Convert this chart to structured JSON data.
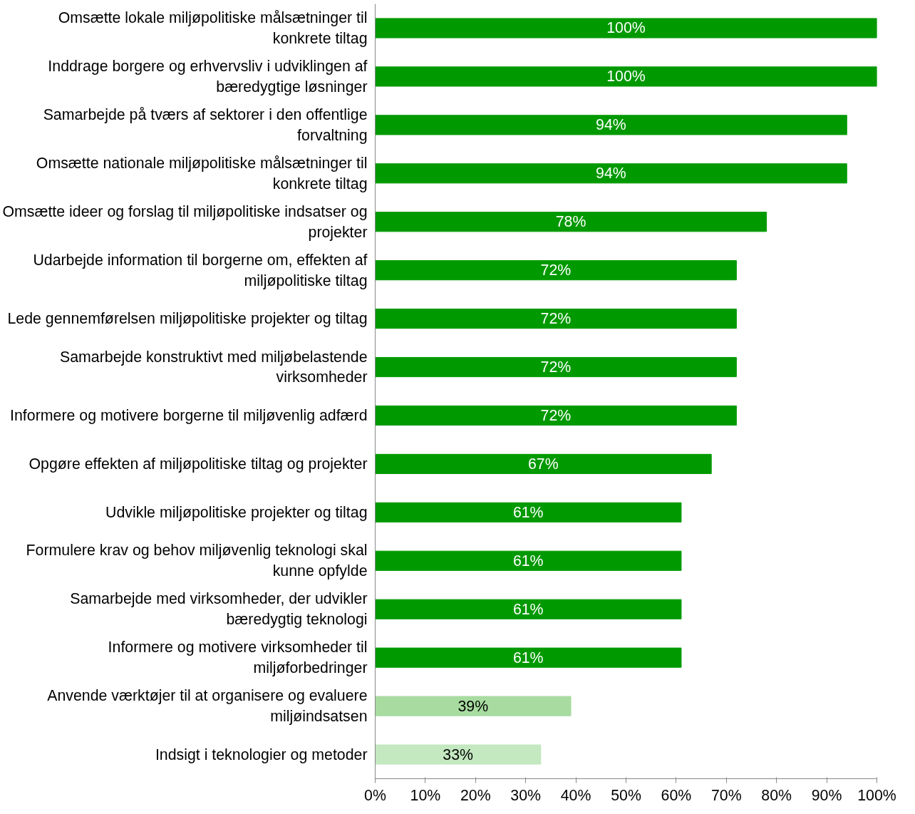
{
  "chart_data": {
    "type": "bar",
    "orientation": "horizontal",
    "categories": [
      "Omsætte lokale miljøpolitiske målsætninger til\nkonkrete tiltag",
      "Inddrage borgere og erhvervsliv i udviklingen af\nbæredygtige løsninger",
      "Samarbejde på tværs af sektorer i den offentlige\nforvaltning",
      "Omsætte nationale miljøpolitiske målsætninger til\nkonkrete tiltag",
      "Omsætte ideer og forslag til miljøpolitiske indsatser og\nprojekter",
      "Udarbejde information til borgerne om, effekten af\nmiljøpolitiske tiltag",
      "Lede gennemførelsen miljøpolitiske projekter og tiltag",
      "Samarbejde konstruktivt med miljøbelastende\nvirksomheder",
      "Informere og motivere borgerne til miljøvenlig adfærd",
      "Opgøre effekten af miljøpolitiske tiltag og projekter",
      "Udvikle miljøpolitiske projekter og tiltag",
      "Formulere krav og behov miljøvenlig teknologi skal\nkunne opfylde",
      "Samarbejde med virksomheder, der udvikler\nbæredygtig teknologi",
      "Informere og motivere virksomheder til\nmiljøforbedringer",
      "Anvende værktøjer til at organisere og evaluere\nmiljøindsatsen",
      "Indsigt i teknologier og metoder"
    ],
    "values": [
      100,
      100,
      94,
      94,
      78,
      72,
      72,
      72,
      72,
      67,
      61,
      61,
      61,
      61,
      39,
      33
    ],
    "value_labels": [
      "100%",
      "100%",
      "94%",
      "94%",
      "78%",
      "72%",
      "72%",
      "72%",
      "72%",
      "67%",
      "61%",
      "61%",
      "61%",
      "61%",
      "39%",
      "33%"
    ],
    "colors": [
      "#009900",
      "#009900",
      "#009900",
      "#009900",
      "#009900",
      "#009900",
      "#009900",
      "#009900",
      "#009900",
      "#009900",
      "#009900",
      "#009900",
      "#009900",
      "#009900",
      "#a8dba0",
      "#c4e8c0"
    ],
    "xlim": [
      0,
      100
    ],
    "xticks": [
      {
        "value": 0,
        "label": "0%"
      },
      {
        "value": 10,
        "label": "10%"
      },
      {
        "value": 20,
        "label": "20%"
      },
      {
        "value": 30,
        "label": "30%"
      },
      {
        "value": 40,
        "label": "40%"
      },
      {
        "value": 50,
        "label": "50%"
      },
      {
        "value": 60,
        "label": "60%"
      },
      {
        "value": 70,
        "label": "70%"
      },
      {
        "value": 80,
        "label": "80%"
      },
      {
        "value": 90,
        "label": "90%"
      },
      {
        "value": 100,
        "label": "100%"
      }
    ],
    "grid": false
  }
}
